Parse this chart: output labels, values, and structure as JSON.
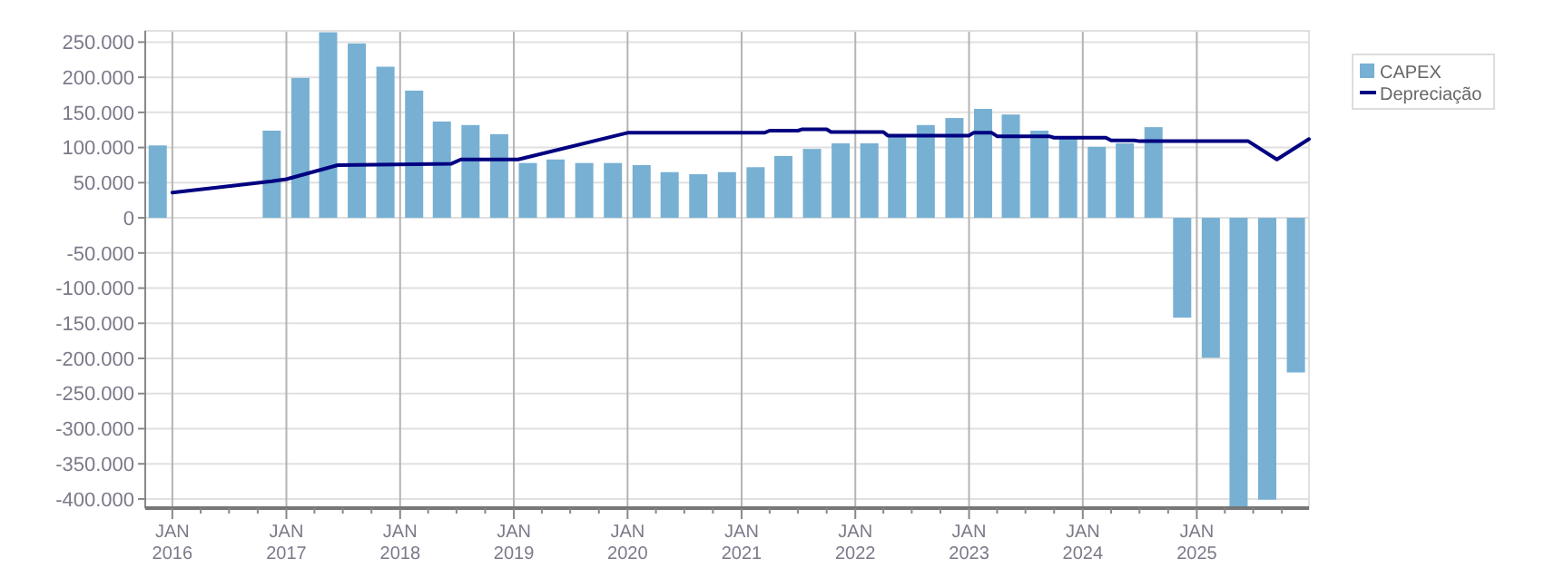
{
  "chart_data": {
    "type": "bar",
    "ylim": [
      -413000,
      266000
    ],
    "yticks": [
      {
        "value": -400000,
        "label": "-400.000"
      },
      {
        "value": -350000,
        "label": "-350.000"
      },
      {
        "value": -300000,
        "label": "-300.000"
      },
      {
        "value": -250000,
        "label": "-250.000"
      },
      {
        "value": -200000,
        "label": "-200.000"
      },
      {
        "value": -150000,
        "label": "-150.000"
      },
      {
        "value": -100000,
        "label": "-100.000"
      },
      {
        "value": -50000,
        "label": "-50.000"
      },
      0,
      {
        "value": 50000,
        "label": "50.000"
      },
      {
        "value": 100000,
        "label": "100.000"
      },
      {
        "value": 150000,
        "label": "150.000"
      },
      {
        "value": 200000,
        "label": "200.000"
      },
      {
        "value": 250000,
        "label": "250.000"
      }
    ],
    "xlim": [
      "2015-10-06",
      "2025-12-27"
    ],
    "xticks": [
      {
        "value": "2016-01-01",
        "label": "JAN 2016"
      },
      {
        "value": "2016-04-01",
        "label": null
      },
      {
        "value": "2016-07-01",
        "label": null
      },
      {
        "value": "2016-10-01",
        "label": null
      },
      {
        "value": "2017-01-01",
        "label": "JAN 2017"
      },
      {
        "value": "2017-04-01",
        "label": null
      },
      {
        "value": "2017-07-01",
        "label": null
      },
      {
        "value": "2017-10-01",
        "label": null
      },
      {
        "value": "2018-01-01",
        "label": "JAN 2018"
      },
      {
        "value": "2018-04-01",
        "label": null
      },
      {
        "value": "2018-07-01",
        "label": null
      },
      {
        "value": "2018-10-01",
        "label": null
      },
      {
        "value": "2019-01-01",
        "label": "JAN 2019"
      },
      {
        "value": "2019-04-01",
        "label": null
      },
      {
        "value": "2019-07-01",
        "label": null
      },
      {
        "value": "2019-10-01",
        "label": null
      },
      {
        "value": "2020-01-01",
        "label": "JAN 2020"
      },
      {
        "value": "2020-04-01",
        "label": null
      },
      {
        "value": "2020-07-01",
        "label": null
      },
      {
        "value": "2020-10-01",
        "label": null
      },
      {
        "value": "2021-01-01",
        "label": "JAN 2021"
      },
      {
        "value": "2021-04-01",
        "label": null
      },
      {
        "value": "2021-07-01",
        "label": null
      },
      {
        "value": "2021-10-01",
        "label": null
      },
      {
        "value": "2022-01-01",
        "label": "JAN 2022"
      },
      {
        "value": "2022-04-01",
        "label": null
      },
      {
        "value": "2022-07-01",
        "label": null
      },
      {
        "value": "2022-10-01",
        "label": null
      },
      {
        "value": "2023-01-01",
        "label": "JAN 2023"
      },
      {
        "value": "2023-04-01",
        "label": null
      },
      {
        "value": "2023-07-01",
        "label": null
      },
      {
        "value": "2023-10-01",
        "label": null
      },
      {
        "value": "2024-01-01",
        "label": "JAN 2024"
      },
      {
        "value": "2024-04-01",
        "label": null
      },
      {
        "value": "2024-07-01",
        "label": null
      },
      {
        "value": "2024-10-01",
        "label": null
      },
      {
        "value": "2025-01-01",
        "label": "JAN 2025"
      },
      {
        "value": "2025-04-01",
        "label": null
      },
      {
        "value": "2025-07-01",
        "label": null
      },
      {
        "value": "2025-10-01",
        "label": null
      }
    ],
    "grid": true,
    "legend": "top right",
    "series": [
      {
        "name": "CAPEX",
        "color": "#77b0d3",
        "x": [
          "2015-11-15",
          "2016-11-15",
          "2017-02-15",
          "2017-05-15",
          "2017-08-15",
          "2017-11-15",
          "2018-02-15",
          "2018-05-15",
          "2018-08-15",
          "2018-11-15",
          "2019-02-15",
          "2019-05-15",
          "2019-08-15",
          "2019-11-15",
          "2020-02-15",
          "2020-05-15",
          "2020-08-15",
          "2020-11-15",
          "2021-02-15",
          "2021-05-15",
          "2021-08-15",
          "2021-11-15",
          "2022-02-15",
          "2022-05-15",
          "2022-08-15",
          "2022-11-15",
          "2023-02-15",
          "2023-05-15",
          "2023-08-15",
          "2023-11-15",
          "2024-02-15",
          "2024-05-15",
          "2024-08-15",
          "2024-11-15",
          "2025-02-15",
          "2025-05-15",
          "2025-08-15",
          "2025-11-15"
        ],
        "values": [
          103000,
          124000,
          199000,
          264000,
          248000,
          215000,
          181000,
          137000,
          132000,
          119000,
          78000,
          83000,
          78000,
          78000,
          75000,
          65000,
          62000,
          65000,
          72000,
          88000,
          98000,
          106000,
          106000,
          116000,
          132000,
          142000,
          155000,
          147000,
          124000,
          114000,
          101000,
          106000,
          129000,
          -142000,
          -199000,
          -412000,
          -401000,
          -220000
        ]
      },
      {
        "name": "Depreciação",
        "type": "line",
        "color": "#000080",
        "line_style": "solid",
        "marker": "none",
        "x": [
          "2016-01-01",
          "2016-11-15",
          "2017-01-01",
          "2017-06-15",
          "2018-06-15",
          "2018-07-15",
          "2019-01-15",
          "2020-01-01",
          "2021-03-15",
          "2021-04-01",
          "2021-07-01",
          "2021-07-15",
          "2021-10-01",
          "2021-10-15",
          "2022-04-01",
          "2022-04-15",
          "2023-01-01",
          "2023-01-15",
          "2023-03-15",
          "2023-04-01",
          "2023-09-15",
          "2023-10-01",
          "2024-03-15",
          "2024-04-01",
          "2024-06-15",
          "2024-07-01",
          "2025-06-15",
          "2025-09-15",
          "2025-12-27"
        ],
        "values": [
          36000,
          52000,
          55000,
          75000,
          77000,
          83000,
          83000,
          121000,
          121000,
          124000,
          124000,
          126000,
          126000,
          122000,
          122000,
          117000,
          117000,
          121000,
          121000,
          116000,
          116000,
          114000,
          114000,
          110000,
          110000,
          109000,
          109000,
          83000,
          112000
        ]
      }
    ]
  }
}
